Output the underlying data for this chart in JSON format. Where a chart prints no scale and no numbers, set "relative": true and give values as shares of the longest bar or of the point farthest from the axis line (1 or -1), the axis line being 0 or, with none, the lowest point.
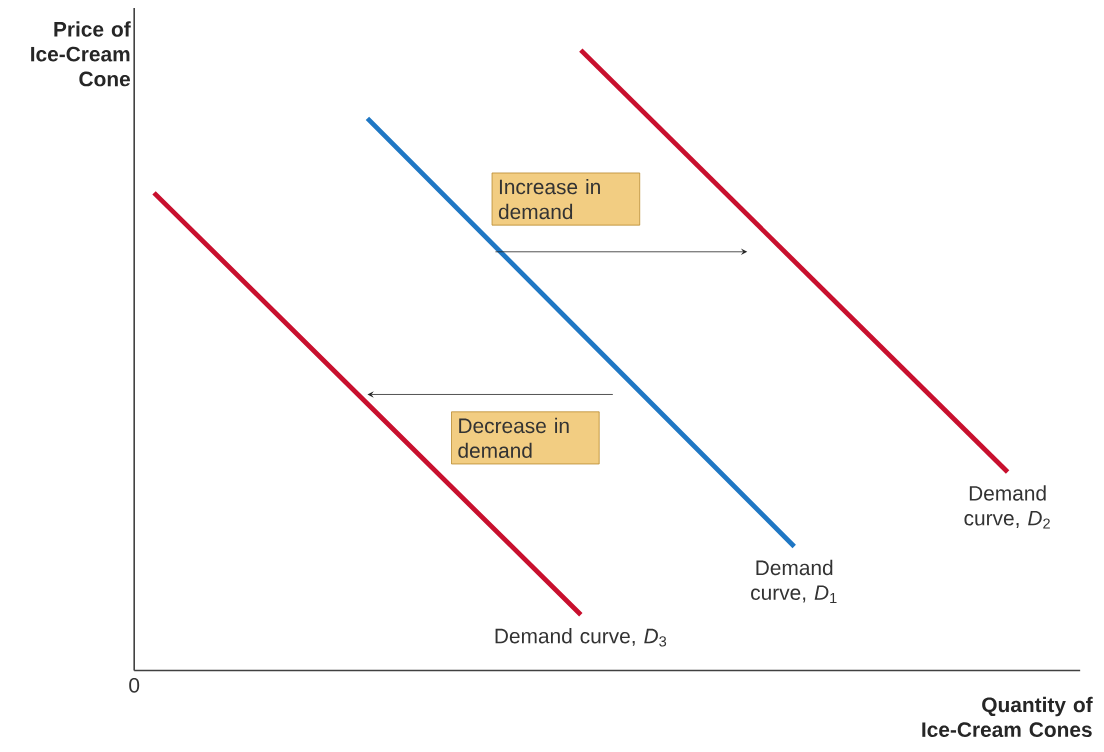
{
  "chart_data": {
    "type": "line",
    "relative": true,
    "xlabel": "Quantity of Ice-Cream Cones",
    "ylabel": "Price of Ice-Cream Cone",
    "categories": [
      null,
      null,
      null,
      null,
      null
    ],
    "series": [
      {
        "name": "Demand curve, *D*$_{1}$",
        "color": "#1f77c4",
        "values": [
          null,
          0.89,
          0.545,
          0.2,
          null
        ]
      },
      {
        "name": "Demand curve, *D*$_{2}$",
        "color": "#c8102e",
        "values": [
          null,
          null,
          1.0,
          0.66,
          0.32
        ]
      },
      {
        "name": "Demand curve, *D*$_{3}$",
        "color": "#c8102e",
        "values": [
          0.77,
          0.43,
          0.09,
          null,
          null
        ]
      }
    ],
    "annotations": [
      "Increase in demand",
      "Decrease in demand",
      "0"
    ]
  }
}
